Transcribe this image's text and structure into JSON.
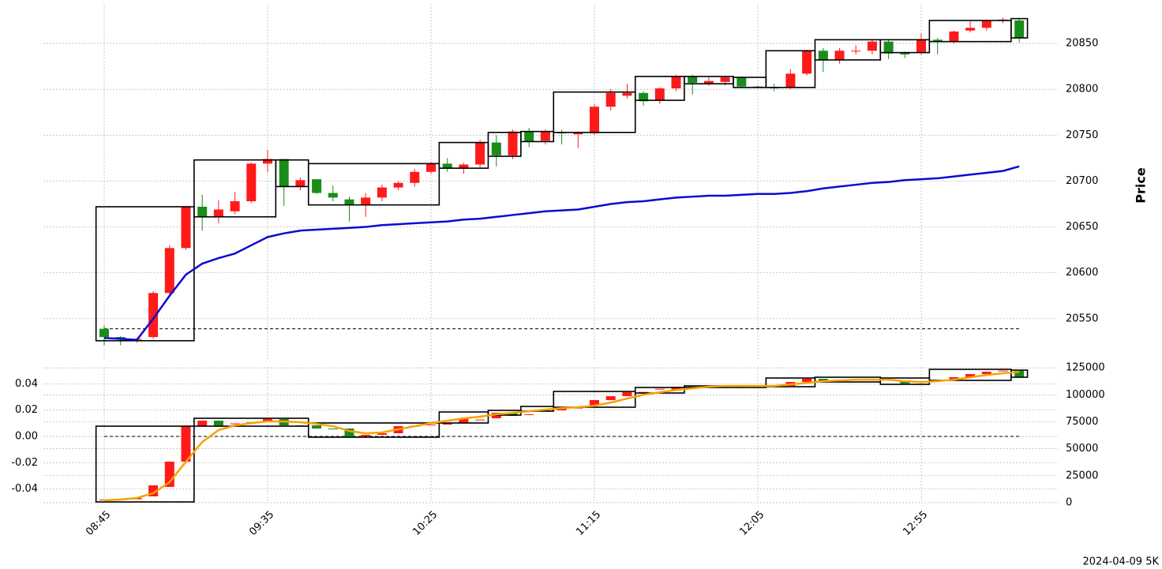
{
  "chart_data": [
    {
      "type": "candlestick",
      "ylabel": "Price",
      "categories": [
        "08:45",
        null,
        null,
        null,
        null,
        null,
        null,
        null,
        null,
        null,
        "09:35",
        null,
        null,
        null,
        null,
        null,
        null,
        null,
        null,
        null,
        "10:25",
        null,
        null,
        null,
        null,
        null,
        null,
        null,
        null,
        null,
        "11:15",
        null,
        null,
        null,
        null,
        null,
        null,
        null,
        null,
        null,
        "12:05",
        null,
        null,
        null,
        null,
        null,
        null,
        null,
        null,
        null,
        "12:55",
        null,
        null,
        null,
        null,
        null,
        null
      ],
      "open": [
        20539,
        20530,
        20527,
        20530,
        20578,
        20627,
        20672,
        20661,
        20667,
        20678,
        20719,
        20724,
        20694,
        20702,
        20687,
        20680,
        20674,
        20682,
        20693,
        20698,
        20710,
        20719,
        20714,
        20718,
        20742,
        20728,
        20754,
        20744,
        20753,
        20751,
        20752,
        20781,
        20793,
        20796,
        20788,
        20801,
        20814,
        20806,
        20808,
        20813,
        20803,
        20802,
        20802,
        20817,
        20842,
        20832,
        20842,
        20842,
        20852,
        20840,
        20840,
        20854,
        20852,
        20864,
        20867,
        20875,
        20875
      ],
      "high": [
        20543,
        20531,
        20529,
        20580,
        20630,
        20673,
        20685,
        20679,
        20688,
        20720,
        20734,
        20724,
        20704,
        20702,
        20695,
        20683,
        20687,
        20696,
        20700,
        20713,
        20721,
        20725,
        20720,
        20745,
        20750,
        20756,
        20758,
        20756,
        20756,
        20754,
        20784,
        20800,
        20806,
        20798,
        20802,
        20816,
        20816,
        20813,
        20814,
        20814,
        20804,
        20806,
        20822,
        20843,
        20845,
        20845,
        20848,
        20854,
        20854,
        20841,
        20861,
        20856,
        20864,
        20874,
        20876,
        20878,
        20877
      ],
      "low": [
        20521,
        20521,
        20524,
        20528,
        20576,
        20625,
        20646,
        20654,
        20664,
        20676,
        20710,
        20673,
        20690,
        20686,
        20678,
        20656,
        20661,
        20678,
        20690,
        20694,
        20708,
        20710,
        20708,
        20715,
        20716,
        20724,
        20737,
        20740,
        20740,
        20736,
        20750,
        20777,
        20790,
        20782,
        20784,
        20798,
        20794,
        20804,
        20804,
        20802,
        20801,
        20798,
        20800,
        20815,
        20819,
        20828,
        20838,
        20838,
        20833,
        20834,
        20838,
        20838,
        20850,
        20862,
        20864,
        20872,
        20851
      ],
      "close": [
        20530,
        20528,
        20528,
        20578,
        20627,
        20672,
        20661,
        20669,
        20678,
        20719,
        20724,
        20694,
        20701,
        20687,
        20682,
        20674,
        20682,
        20693,
        20698,
        20710,
        20719,
        20714,
        20718,
        20742,
        20728,
        20754,
        20743,
        20754,
        20752,
        20753,
        20781,
        20796,
        20796,
        20787,
        20801,
        20814,
        20807,
        20809,
        20813,
        20803,
        20802,
        20801,
        20817,
        20842,
        20832,
        20842,
        20842,
        20852,
        20839,
        20838,
        20854,
        20852,
        20863,
        20867,
        20875,
        20876,
        20856
      ],
      "up_color": "#ff1a1a",
      "down_color": "#1a8c1a",
      "lines": [
        {
          "color": "#0a0ad2",
          "values": [
            20529,
            20528,
            20527,
            20550,
            20575,
            20598,
            20610,
            20616,
            20621,
            20630,
            20639,
            20643,
            20646,
            20647,
            20648,
            20649,
            20650,
            20652,
            20653,
            20654,
            20655,
            20656,
            20658,
            20659,
            20661,
            20663,
            20665,
            20667,
            20668,
            20669,
            20672,
            20675,
            20677,
            20678,
            20680,
            20682,
            20683,
            20684,
            20684,
            20685,
            20686,
            20686,
            20687,
            20689,
            20692,
            20694,
            20696,
            20698,
            20699,
            20701,
            20702,
            20703,
            20705,
            20707,
            20709,
            20711,
            20716
          ]
        }
      ],
      "boxes": [
        {
          "from": 0,
          "to": 5,
          "top": 20672,
          "bottom": 20526
        },
        {
          "from": 6,
          "to": 10,
          "top": 20723,
          "bottom": 20661
        },
        {
          "from": 11,
          "to": 12,
          "top": 20723,
          "bottom": 20694
        },
        {
          "from": 13,
          "to": 20,
          "top": 20719,
          "bottom": 20674
        },
        {
          "from": 21,
          "to": 23,
          "top": 20742,
          "bottom": 20714
        },
        {
          "from": 24,
          "to": 25,
          "top": 20753,
          "bottom": 20727
        },
        {
          "from": 26,
          "to": 27,
          "top": 20754,
          "bottom": 20743
        },
        {
          "from": 28,
          "to": 32,
          "top": 20797,
          "bottom": 20753
        },
        {
          "from": 33,
          "to": 35,
          "top": 20814,
          "bottom": 20788
        },
        {
          "from": 36,
          "to": 38,
          "top": 20814,
          "bottom": 20806
        },
        {
          "from": 39,
          "to": 40,
          "top": 20813,
          "bottom": 20802
        },
        {
          "from": 41,
          "to": 43,
          "top": 20842,
          "bottom": 20802
        },
        {
          "from": 44,
          "to": 47,
          "top": 20854,
          "bottom": 20832
        },
        {
          "from": 48,
          "to": 50,
          "top": 20854,
          "bottom": 20840
        },
        {
          "from": 51,
          "to": 55,
          "top": 20875,
          "bottom": 20852
        },
        {
          "from": 56,
          "to": 56,
          "top": 20877,
          "bottom": 20856
        }
      ],
      "hline": 20539,
      "ylim": [
        20506,
        20893
      ],
      "yticks": [
        20550,
        20600,
        20650,
        20700,
        20750,
        20800,
        20850
      ],
      "grid": true
    },
    {
      "type": "candlestick",
      "open": [
        -0.0486,
        -0.048,
        -0.0478,
        -0.0456,
        -0.0384,
        -0.0192,
        0.0078,
        0.012,
        0.0096,
        0.0102,
        0.0108,
        0.0132,
        0.0084,
        0.0084,
        0.006,
        0.006,
        0.0,
        0.0012,
        0.0024,
        0.0078,
        0.0084,
        0.009,
        0.0102,
        0.0126,
        0.0138,
        0.018,
        0.0162,
        0.0192,
        0.0198,
        0.0216,
        0.0234,
        0.0276,
        0.0306,
        0.0336,
        0.036,
        0.0348,
        0.0378,
        0.0378,
        0.0378,
        0.0378,
        0.0378,
        0.038,
        0.0384,
        0.0414,
        0.0438,
        0.0426,
        0.0432,
        0.0432,
        0.0432,
        0.042,
        0.0414,
        0.0426,
        0.0426,
        0.045,
        0.0474,
        0.0498,
        0.0498
      ],
      "close": [
        -0.048,
        -0.0478,
        -0.0468,
        -0.0372,
        -0.0192,
        0.0078,
        0.012,
        0.0078,
        0.0099,
        0.0108,
        0.0132,
        0.0084,
        0.0082,
        0.006,
        0.0058,
        -0.0006,
        0.0012,
        0.0024,
        0.0078,
        0.008,
        0.009,
        0.0102,
        0.0132,
        0.0128,
        0.018,
        0.0156,
        0.0168,
        0.0198,
        0.0216,
        0.0218,
        0.0276,
        0.0306,
        0.0336,
        0.0338,
        0.0362,
        0.0378,
        0.0376,
        0.038,
        0.0376,
        0.0374,
        0.038,
        0.0384,
        0.0414,
        0.0438,
        0.0414,
        0.0428,
        0.0434,
        0.0434,
        0.0432,
        0.0402,
        0.0416,
        0.0426,
        0.045,
        0.0474,
        0.0492,
        0.05,
        0.045
      ],
      "up_color": "#ff1a1a",
      "down_color": "#1a8c1a",
      "lines": [
        {
          "color": "#f5a300",
          "axis": "y2",
          "values": [
            2200,
            2900,
            4400,
            8800,
            19000,
            38000,
            56300,
            67300,
            71600,
            73800,
            75300,
            75300,
            74600,
            73100,
            70900,
            66500,
            64300,
            65100,
            68000,
            70900,
            73800,
            76000,
            78200,
            79700,
            81900,
            83300,
            84800,
            86300,
            87700,
            88500,
            89900,
            92800,
            96500,
            100100,
            102300,
            104500,
            106000,
            107500,
            108200,
            108200,
            108200,
            108200,
            109600,
            111100,
            112600,
            113300,
            114000,
            114000,
            114000,
            112600,
            111800,
            112600,
            114000,
            116200,
            118400,
            119900,
            121300
          ]
        }
      ],
      "boxes": [
        {
          "from": 0,
          "to": 5,
          "top": 0.0078,
          "bottom": -0.0498
        },
        {
          "from": 6,
          "to": 12,
          "top": 0.0138,
          "bottom": 0.0078
        },
        {
          "from": 13,
          "to": 20,
          "top": 0.0102,
          "bottom": -0.0006
        },
        {
          "from": 21,
          "to": 23,
          "top": 0.0186,
          "bottom": 0.0102
        },
        {
          "from": 24,
          "to": 25,
          "top": 0.0198,
          "bottom": 0.0162
        },
        {
          "from": 26,
          "to": 27,
          "top": 0.0228,
          "bottom": 0.0192
        },
        {
          "from": 28,
          "to": 32,
          "top": 0.0342,
          "bottom": 0.0222
        },
        {
          "from": 33,
          "to": 35,
          "top": 0.0372,
          "bottom": 0.033
        },
        {
          "from": 36,
          "to": 40,
          "top": 0.0384,
          "bottom": 0.0372
        },
        {
          "from": 41,
          "to": 43,
          "top": 0.0444,
          "bottom": 0.0378
        },
        {
          "from": 44,
          "to": 47,
          "top": 0.045,
          "bottom": 0.0414
        },
        {
          "from": 48,
          "to": 50,
          "top": 0.0444,
          "bottom": 0.0396
        },
        {
          "from": 51,
          "to": 55,
          "top": 0.051,
          "bottom": 0.0426
        },
        {
          "from": 56,
          "to": 56,
          "top": 0.0504,
          "bottom": 0.045
        }
      ],
      "hline": 0,
      "ylim": [
        -0.0504,
        0.0528
      ],
      "yticks": [
        -0.04,
        -0.02,
        {
          "value": 0,
          "label": "0.00"
        },
        0.02,
        0.04
      ],
      "y2lim": [
        0,
        125800
      ],
      "y2ticks": [
        0,
        25000,
        50000,
        75000,
        100000,
        125000
      ],
      "grid": true
    }
  ],
  "footer": "2024-04-09 5K"
}
